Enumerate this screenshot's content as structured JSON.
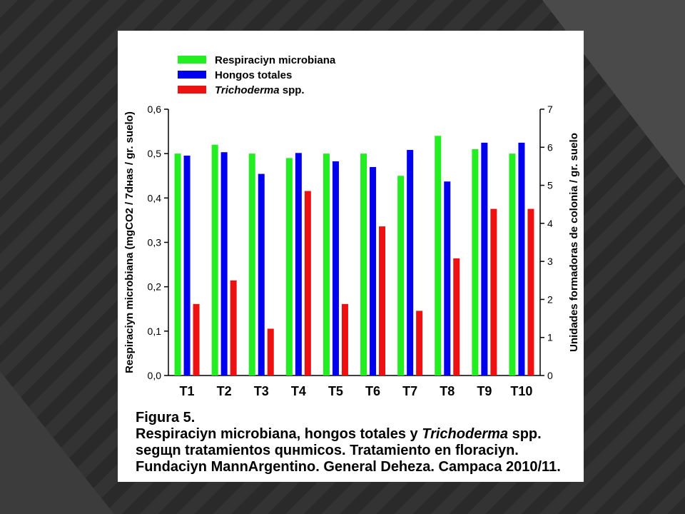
{
  "slide": {
    "colors": {
      "background": "#2f2f2f",
      "panel": "#ffffff"
    }
  },
  "chart_data": {
    "type": "bar",
    "categories": [
      "T1",
      "T2",
      "T3",
      "T4",
      "T5",
      "T6",
      "T7",
      "T8",
      "T9",
      "T10"
    ],
    "series": [
      {
        "name": "Respiraciyn microbiana",
        "color": "#22ee22",
        "axis": "left",
        "values": [
          0.5,
          0.52,
          0.5,
          0.49,
          0.5,
          0.5,
          0.45,
          0.54,
          0.51,
          0.5
        ]
      },
      {
        "name": "Hongos totales",
        "color": "#0000ee",
        "axis": "right",
        "values": [
          5.78,
          5.87,
          5.3,
          5.85,
          5.63,
          5.48,
          5.93,
          5.1,
          6.12,
          6.12
        ]
      },
      {
        "name_prefix": "Trichoderma",
        "name_suffix": " spp.",
        "color": "#ee1111",
        "axis": "right",
        "values": [
          1.88,
          2.5,
          1.23,
          4.85,
          1.88,
          3.92,
          1.7,
          3.08,
          4.38,
          4.38
        ]
      }
    ],
    "ylabel_left": "Respiraciyn microbiana (mgCO2 / 7dнas / gr. suelo)",
    "ylabel_right": "Unidades formadoras de colonia / gr. suelo",
    "ylim_left": [
      0,
      0.6
    ],
    "yticks_left": [
      "0,0",
      "0,1",
      "0,2",
      "0,3",
      "0,4",
      "0,5",
      "0,6"
    ],
    "ylim_right": [
      0,
      7
    ],
    "yticks_right": [
      "0",
      "1",
      "2",
      "3",
      "4",
      "5",
      "6",
      "7"
    ],
    "legend_position": "top-left",
    "grid": false
  },
  "caption": {
    "line1": "Figura 5.",
    "line2_a": "Respiraciyn microbiana, hongos totales y ",
    "line2_b": "Trichoderma",
    "line2_c": " spp.",
    "line3": "segщn tratamientos quнmicos. Tratamiento en floraciyn.",
    "line4": "Fundaciyn MannArgentino. General Deheza. Campaca 2010/11."
  }
}
